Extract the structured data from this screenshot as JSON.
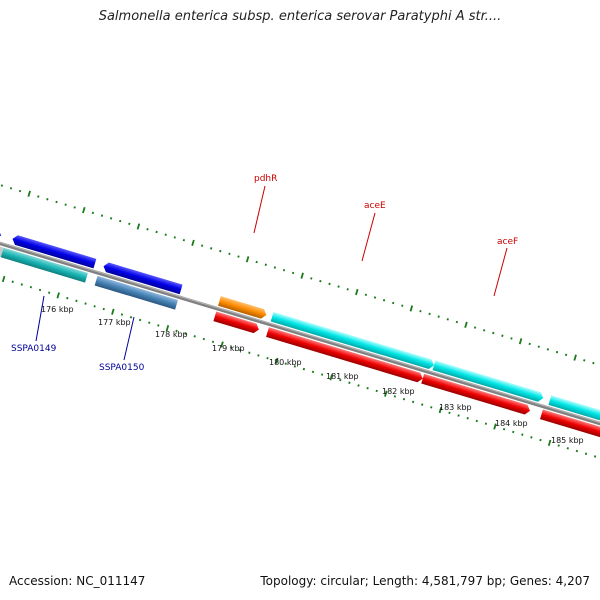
{
  "title": "Salmonella enterica subsp. enterica serovar Paratyphi A str....",
  "footer": {
    "accession": "Accession: NC_011147",
    "stats": "Topology: circular; Length: 4,581,797 bp; Genes: 4,207"
  },
  "kbp_labels": [
    "176 kbp",
    "177 kbp",
    "178 kbp",
    "179 kbp",
    "180 kbp",
    "181 kbp",
    "182 kbp",
    "183 kbp",
    "184 kbp",
    "185 kbp"
  ],
  "genes": [
    "pdhR",
    "aceE",
    "aceF",
    "SSPA0149",
    "SSPA0150"
  ],
  "colors": {
    "tick": "#1a7a1a",
    "backbone": "#808080",
    "blue": "#0000e0",
    "cyan": "#00e6e6",
    "teal": "#19b3b3",
    "steel": "#4682b4",
    "red": "#ee0000",
    "orange": "#ff8c00"
  }
}
